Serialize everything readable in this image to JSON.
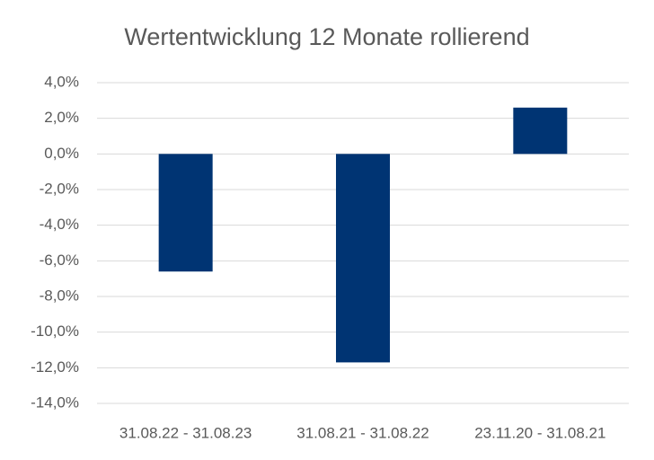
{
  "chart_data": {
    "type": "bar",
    "title": "Wertentwicklung 12 Monate rollierend",
    "categories": [
      "31.08.22 - 31.08.23",
      "31.08.21 - 31.08.22",
      "23.11.20 - 31.08.21"
    ],
    "values": [
      -6.6,
      -11.7,
      2.6
    ],
    "color": "#003473",
    "ylim": [
      -14,
      4
    ],
    "yticks": [
      {
        "value": -14,
        "label": "-14,0%"
      },
      {
        "value": -12,
        "label": "-12,0%"
      },
      {
        "value": -10,
        "label": "-10,0%"
      },
      {
        "value": -8,
        "label": "-8,0%"
      },
      {
        "value": -6,
        "label": "-6,0%"
      },
      {
        "value": -4,
        "label": "-4,0%"
      },
      {
        "value": -2,
        "label": "-2,0%"
      },
      {
        "value": 0,
        "label": "0,0%"
      },
      {
        "value": 2,
        "label": "2,0%"
      },
      {
        "value": 4,
        "label": "4,0%"
      }
    ],
    "grid": true
  }
}
